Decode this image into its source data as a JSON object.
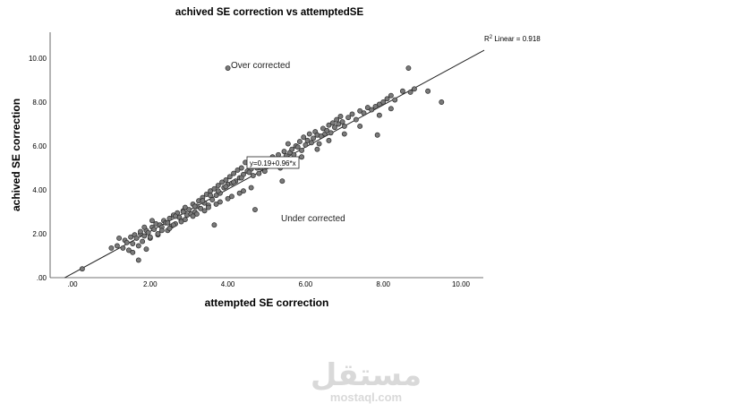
{
  "chart_data": {
    "type": "scatter",
    "title": "achived SE correction vs attemptedSE",
    "xlabel": "attempted SE correction",
    "ylabel": "achived SE correction",
    "xlim": [
      -0.3,
      10.6
    ],
    "ylim": [
      0,
      11.2
    ],
    "x_ticks": [
      ".00",
      "2.00",
      "4.00",
      "6.00",
      "8.00",
      "10.00"
    ],
    "x_tick_values": [
      0,
      2,
      4,
      6,
      8,
      10
    ],
    "y_ticks": [
      ".00",
      "2.00",
      "4.00",
      "6.00",
      "8.00",
      "10.00"
    ],
    "y_tick_values": [
      0,
      2,
      4,
      6,
      8,
      10
    ],
    "grid": false,
    "fit_line": {
      "intercept": 0.19,
      "slope": 0.96,
      "equation_label": "y=0.19+0.96*x",
      "r2_prefix": "R",
      "r2_sup": "2",
      "r2_suffix": " Linear = 0.918",
      "r2_value": 0.918
    },
    "annotations": [
      {
        "text": "Over corrected",
        "x": 4.05,
        "y": 9.55
      },
      {
        "text": "Under corrected",
        "x": 5.45,
        "y": 2.65
      }
    ],
    "marker_color": "#7a7a7a",
    "marker_edge": "#2a2a2a",
    "x": [
      0.25,
      1.0,
      1.15,
      1.2,
      1.3,
      1.35,
      1.4,
      1.45,
      1.5,
      1.55,
      1.6,
      1.65,
      1.7,
      1.75,
      1.8,
      1.85,
      1.9,
      1.95,
      2.0,
      2.05,
      2.1,
      2.15,
      2.2,
      2.25,
      2.3,
      2.35,
      2.4,
      2.45,
      2.5,
      2.55,
      2.6,
      2.65,
      2.7,
      2.75,
      2.8,
      2.85,
      2.9,
      2.95,
      3.0,
      3.05,
      3.1,
      3.15,
      3.2,
      3.25,
      3.3,
      3.35,
      3.4,
      3.45,
      3.5,
      3.55,
      3.6,
      3.65,
      3.7,
      3.75,
      3.8,
      3.85,
      3.9,
      3.95,
      4.0,
      4.05,
      4.1,
      4.15,
      4.2,
      4.25,
      4.3,
      4.35,
      4.4,
      4.45,
      4.5,
      4.55,
      4.6,
      4.65,
      4.7,
      4.75,
      4.8,
      4.85,
      4.9,
      4.95,
      5.0,
      5.05,
      5.1,
      5.15,
      5.2,
      5.25,
      5.3,
      5.35,
      5.4,
      5.45,
      5.5,
      5.55,
      5.6,
      5.65,
      5.7,
      5.75,
      5.8,
      5.85,
      5.9,
      5.95,
      6.0,
      6.05,
      6.1,
      6.15,
      6.2,
      6.25,
      6.3,
      6.35,
      6.4,
      6.45,
      6.5,
      6.55,
      6.6,
      6.65,
      6.7,
      6.75,
      6.8,
      6.85,
      6.9,
      6.95,
      7.0,
      7.1,
      7.2,
      7.3,
      7.4,
      7.5,
      7.6,
      7.7,
      7.8,
      7.9,
      8.0,
      8.1,
      8.2,
      8.3,
      8.5,
      8.7,
      8.8,
      9.15,
      9.5,
      1.75,
      1.85,
      2.05,
      2.45,
      2.65,
      2.85,
      3.15,
      3.35,
      3.55,
      3.75,
      3.95,
      4.15,
      4.35,
      4.55,
      4.75,
      4.95,
      2.0,
      2.3,
      2.6,
      2.9,
      3.2,
      3.5,
      3.8,
      4.1,
      4.4,
      1.55,
      1.7,
      1.9,
      2.2,
      2.5,
      2.8,
      3.1,
      3.4,
      3.7,
      4.0,
      4.3,
      4.6,
      5.5,
      5.9,
      6.3,
      6.6,
      7.0,
      7.4,
      7.9,
      8.2,
      8.65,
      4.0,
      7.85,
      3.65
    ],
    "y": [
      0.4,
      1.35,
      1.45,
      1.8,
      1.35,
      1.7,
      1.6,
      1.25,
      1.85,
      1.55,
      1.95,
      1.8,
      0.8,
      2.0,
      1.65,
      1.9,
      2.15,
      2.05,
      1.8,
      2.3,
      2.2,
      2.45,
      1.95,
      2.4,
      2.3,
      2.6,
      2.5,
      2.15,
      2.7,
      2.35,
      2.85,
      2.45,
      2.95,
      2.75,
      2.6,
      3.05,
      3.2,
      2.85,
      3.1,
      2.9,
      3.35,
      3.0,
      3.25,
      3.5,
      3.15,
      3.65,
      3.4,
      3.8,
      3.3,
      3.95,
      3.55,
      4.05,
      3.75,
      4.2,
      3.85,
      4.35,
      4.1,
      4.45,
      4.25,
      4.6,
      4.3,
      4.75,
      4.4,
      4.9,
      4.55,
      5.0,
      4.7,
      5.25,
      4.85,
      5.1,
      4.95,
      4.65,
      3.1,
      5.3,
      4.75,
      5.0,
      5.2,
      4.85,
      5.05,
      5.35,
      5.25,
      5.5,
      5.15,
      5.4,
      5.6,
      5.0,
      4.4,
      5.75,
      5.55,
      6.1,
      5.7,
      5.85,
      5.6,
      6.0,
      5.95,
      6.2,
      5.8,
      6.4,
      6.05,
      6.25,
      6.55,
      6.15,
      6.35,
      6.65,
      6.5,
      6.1,
      6.45,
      6.8,
      6.55,
      6.7,
      6.95,
      6.6,
      7.05,
      6.85,
      7.2,
      7.0,
      7.35,
      7.1,
      6.9,
      7.3,
      7.45,
      7.2,
      7.6,
      7.5,
      7.75,
      7.65,
      7.8,
      7.9,
      8.0,
      8.15,
      8.3,
      8.1,
      8.5,
      8.45,
      8.6,
      8.5,
      8.0,
      2.1,
      2.3,
      2.6,
      2.5,
      2.8,
      3.0,
      3.25,
      3.5,
      3.75,
      3.95,
      4.15,
      4.35,
      4.55,
      4.8,
      5.0,
      5.2,
      1.85,
      2.15,
      2.4,
      2.65,
      2.9,
      3.2,
      3.45,
      3.7,
      3.95,
      1.15,
      1.45,
      1.3,
      2.0,
      2.25,
      2.55,
      2.8,
      3.05,
      3.35,
      3.6,
      3.85,
      4.1,
      5.15,
      5.5,
      5.85,
      6.25,
      6.55,
      6.9,
      7.4,
      7.7,
      9.55,
      9.55,
      6.5,
      2.4
    ]
  },
  "watermark": {
    "arabic": "مستقل",
    "latin": "mostaql.com"
  }
}
